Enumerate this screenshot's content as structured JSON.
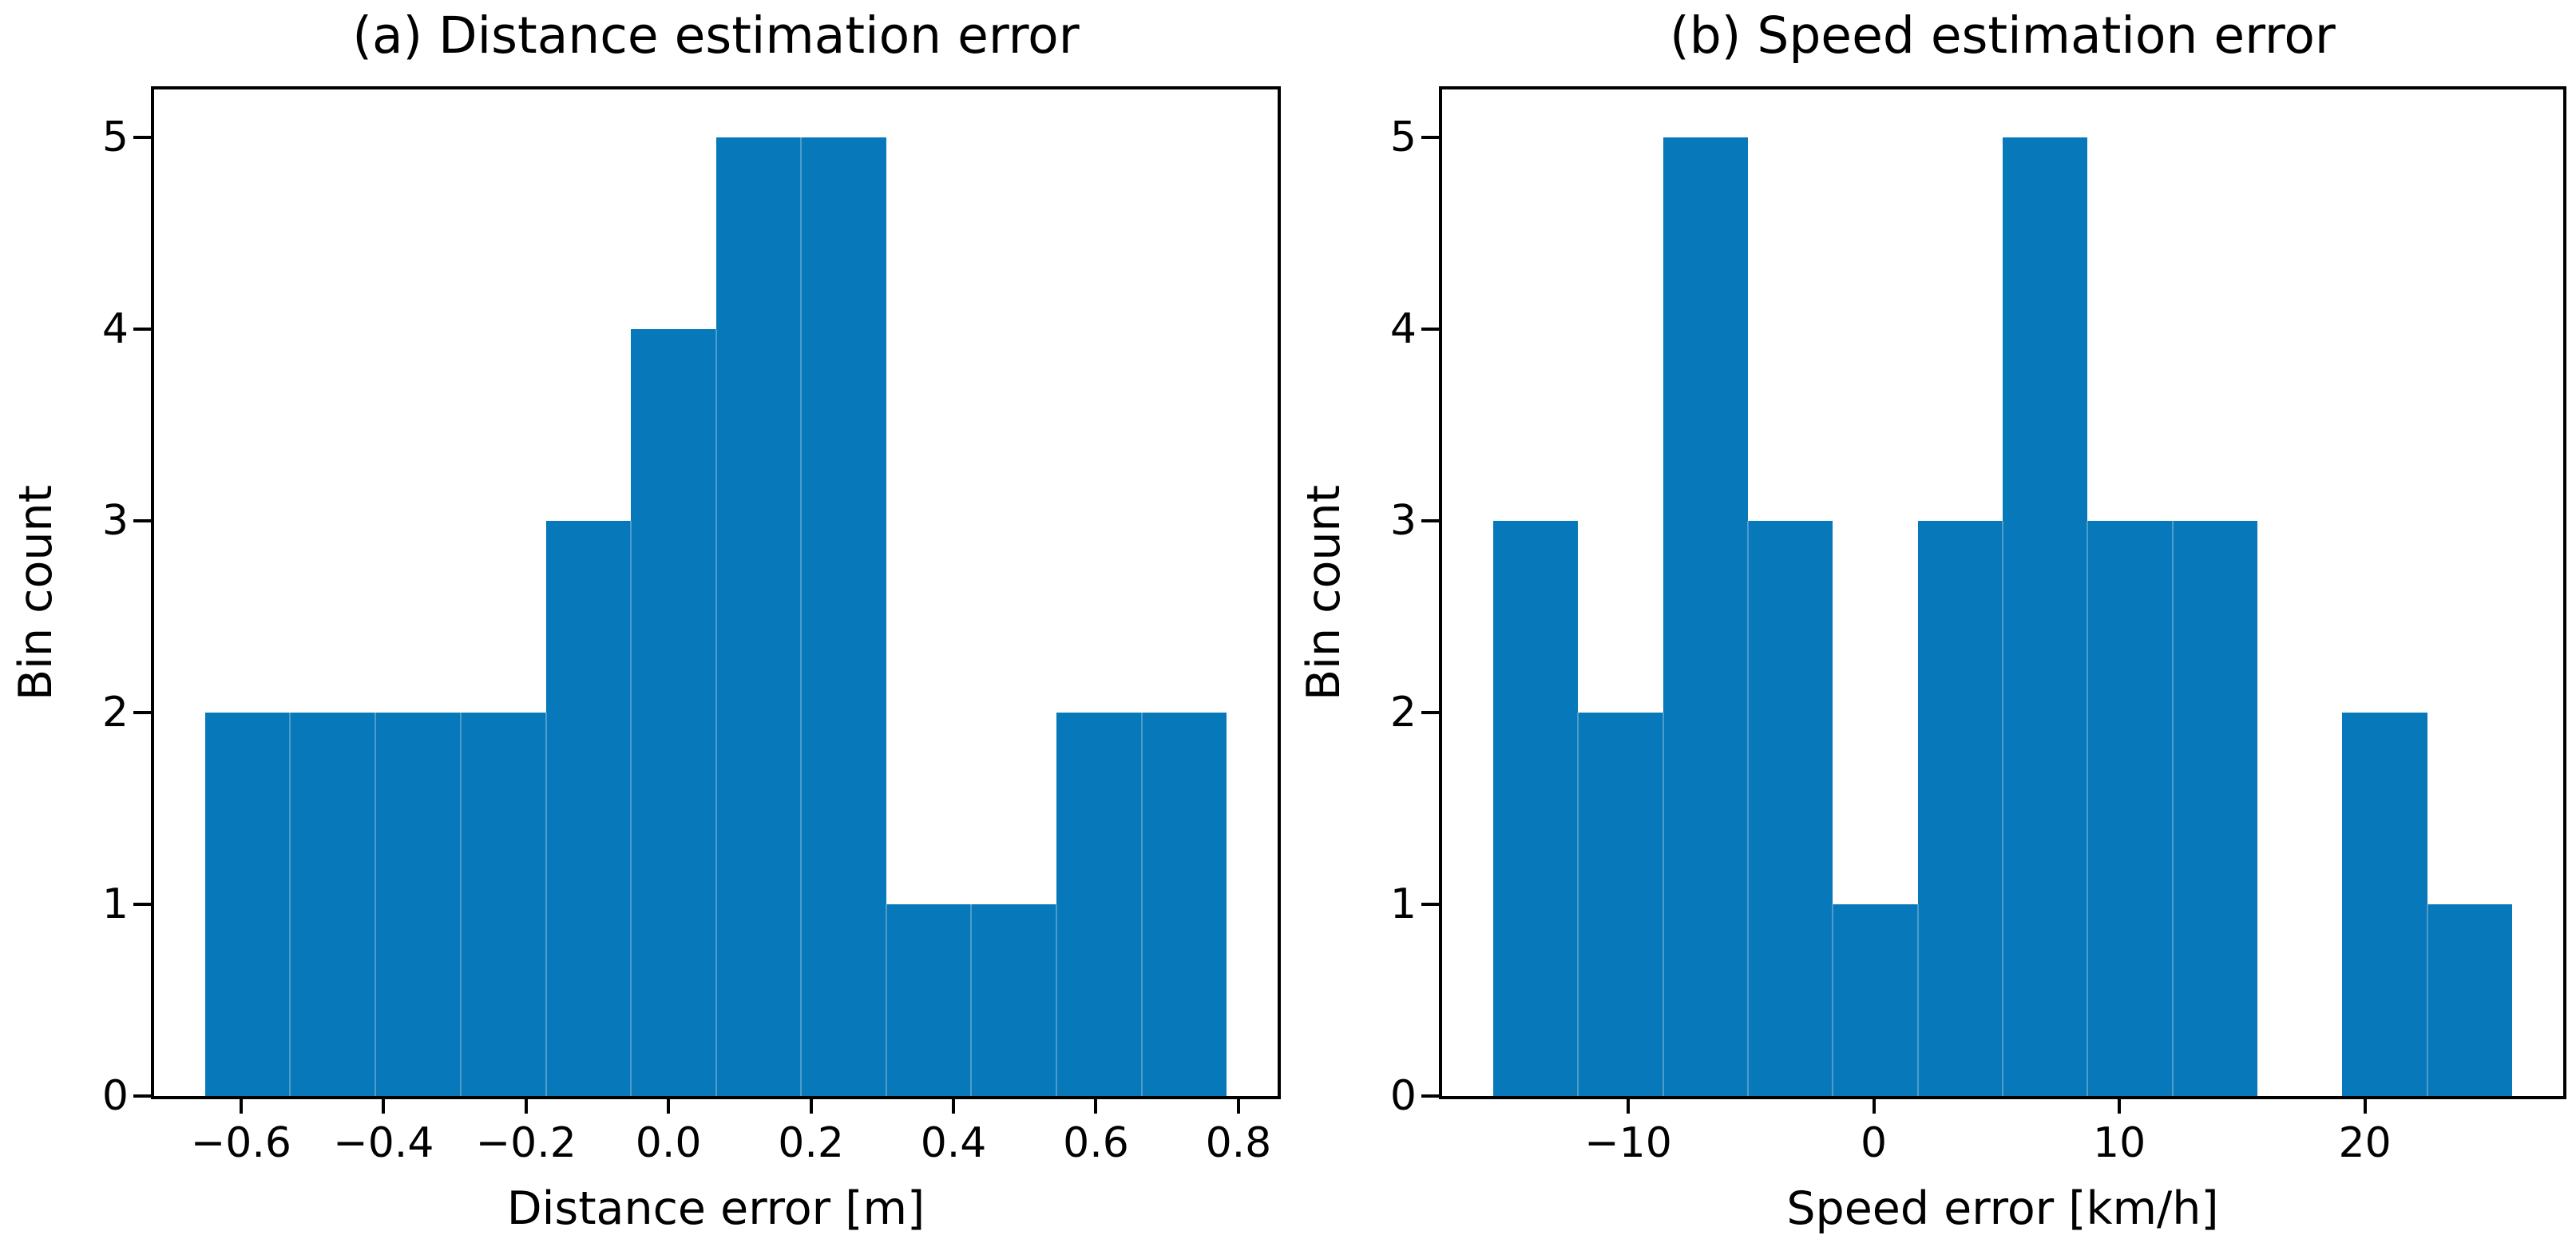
{
  "figure": {
    "background_color": "#ffffff",
    "bar_color": "#0778b9",
    "bar_seam_color": "rgba(255,255,255,0.28)",
    "axis_color": "#000000",
    "text_color": "#000000"
  },
  "chart_data": [
    {
      "type": "bar",
      "subtype": "histogram",
      "title": "(a) Distance estimation error",
      "xlabel": "Distance error [m]",
      "ylabel": "Bin count",
      "bin_edges": [
        -0.65,
        -0.531,
        -0.411,
        -0.292,
        -0.172,
        -0.053,
        0.067,
        0.186,
        0.306,
        0.425,
        0.544,
        0.664,
        0.783
      ],
      "counts": [
        2,
        2,
        2,
        2,
        3,
        4,
        5,
        5,
        1,
        1,
        2,
        2
      ],
      "total_samples": 31,
      "xticks": [
        -0.6,
        -0.4,
        -0.2,
        0.0,
        0.2,
        0.4,
        0.6,
        0.8
      ],
      "xtick_labels": [
        "−0.6",
        "−0.4",
        "−0.2",
        "0.0",
        "0.2",
        "0.4",
        "0.6",
        "0.8"
      ],
      "yticks": [
        0,
        1,
        2,
        3,
        4,
        5
      ],
      "ytick_labels": [
        "0",
        "1",
        "2",
        "3",
        "4",
        "5"
      ],
      "xlim": [
        -0.722,
        0.855
      ],
      "ylim": [
        0,
        5.25
      ],
      "grid": false,
      "legend": null
    },
    {
      "type": "bar",
      "subtype": "histogram",
      "title": "(b) Speed estimation error",
      "xlabel": "Speed error [km/h]",
      "ylabel": "Bin count",
      "bin_edges": [
        -15.5,
        -12.042,
        -8.583,
        -5.125,
        -1.667,
        1.792,
        5.25,
        8.708,
        12.167,
        15.625,
        19.083,
        22.542,
        26.0
      ],
      "counts": [
        3,
        2,
        5,
        3,
        1,
        3,
        5,
        3,
        3,
        0,
        2,
        1
      ],
      "total_samples": 31,
      "xticks": [
        -10,
        0,
        10,
        20
      ],
      "xtick_labels": [
        "−10",
        "0",
        "10",
        "20"
      ],
      "yticks": [
        0,
        1,
        2,
        3,
        4,
        5
      ],
      "ytick_labels": [
        "0",
        "1",
        "2",
        "3",
        "4",
        "5"
      ],
      "xlim": [
        -17.575,
        28.075
      ],
      "ylim": [
        0,
        5.25
      ],
      "grid": false,
      "legend": null
    }
  ]
}
